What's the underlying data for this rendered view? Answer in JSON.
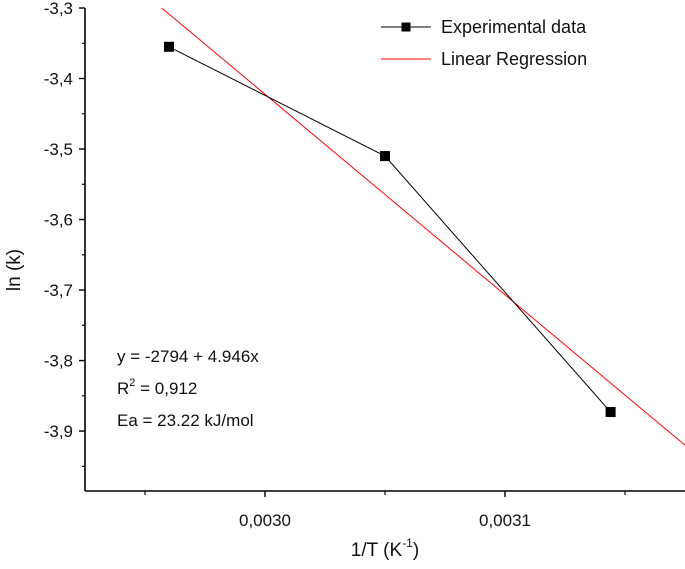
{
  "chart_data": {
    "type": "scatter",
    "xlabel": "1/T (K",
    "xlabel_sup": "-1",
    "xlabel_close": ")",
    "ylabel": "ln (k)",
    "xlim": [
      0.002925,
      0.003175
    ],
    "ylim": [
      -3.985,
      -3.3
    ],
    "x_ticks": [
      0.003,
      0.0031
    ],
    "x_tick_labels": [
      "0,0030",
      "0,0031"
    ],
    "y_ticks": [
      -3.3,
      -3.4,
      -3.5,
      -3.6,
      -3.7,
      -3.8,
      -3.9
    ],
    "y_tick_labels": [
      "-3,3",
      "-3,4",
      "-3,5",
      "-3,6",
      "-3,7",
      "-3,8",
      "-3,9"
    ],
    "grid": false,
    "legend_position": "top-right",
    "series": [
      {
        "name": "Experimental data",
        "kind": "line+markers",
        "color": "#000000",
        "x": [
          0.00296,
          0.00305,
          0.003144
        ],
        "y": [
          -3.355,
          -3.51,
          -3.873
        ]
      },
      {
        "name": "Linear Regression",
        "kind": "line",
        "color": "#ff0000",
        "x": [
          0.002957,
          0.003175
        ],
        "y": [
          -3.3,
          -3.92
        ]
      }
    ],
    "annotations": {
      "equation": "y = -2794 + 4.946x",
      "r2_prefix": "R",
      "r2_sup": "2",
      "r2_value": " = 0,912",
      "ea": "Ea = 23.22 kJ/mol"
    }
  }
}
